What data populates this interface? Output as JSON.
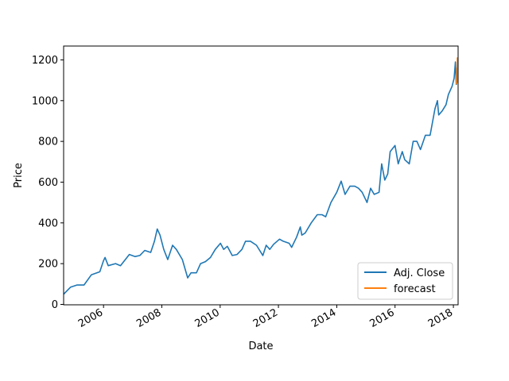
{
  "chart_data": {
    "type": "line",
    "title": "",
    "xlabel": "Date",
    "ylabel": "Price",
    "x_range": [
      "2004-08-19",
      "2018-03-01"
    ],
    "ylim": [
      -2,
      1268
    ],
    "x_ticks": [
      {
        "date": "2006-01-01",
        "label": "2006"
      },
      {
        "date": "2008-01-01",
        "label": "2008"
      },
      {
        "date": "2010-01-01",
        "label": "2010"
      },
      {
        "date": "2012-01-01",
        "label": "2012"
      },
      {
        "date": "2014-01-01",
        "label": "2014"
      },
      {
        "date": "2016-01-01",
        "label": "2016"
      },
      {
        "date": "2018-01-01",
        "label": "2018"
      }
    ],
    "y_ticks": [
      0,
      200,
      400,
      600,
      800,
      1000,
      1200
    ],
    "grid": false,
    "legend": "lower right",
    "series": [
      {
        "name": "Adj. Close",
        "color": "#1f77b4",
        "points": [
          [
            "2004-08-19",
            50
          ],
          [
            "2004-11-15",
            85
          ],
          [
            "2005-02-01",
            95
          ],
          [
            "2005-05-01",
            95
          ],
          [
            "2005-08-01",
            145
          ],
          [
            "2005-11-15",
            160
          ],
          [
            "2006-01-01",
            215
          ],
          [
            "2006-01-20",
            230
          ],
          [
            "2006-03-01",
            190
          ],
          [
            "2006-06-01",
            200
          ],
          [
            "2006-08-01",
            190
          ],
          [
            "2006-11-20",
            245
          ],
          [
            "2007-02-01",
            235
          ],
          [
            "2007-04-01",
            240
          ],
          [
            "2007-06-01",
            265
          ],
          [
            "2007-08-15",
            255
          ],
          [
            "2007-10-01",
            310
          ],
          [
            "2007-11-05",
            370
          ],
          [
            "2007-12-10",
            340
          ],
          [
            "2008-01-25",
            270
          ],
          [
            "2008-03-15",
            220
          ],
          [
            "2008-05-15",
            290
          ],
          [
            "2008-07-01",
            270
          ],
          [
            "2008-09-15",
            220
          ],
          [
            "2008-11-20",
            130
          ],
          [
            "2009-01-01",
            155
          ],
          [
            "2009-03-10",
            155
          ],
          [
            "2009-05-01",
            200
          ],
          [
            "2009-07-01",
            210
          ],
          [
            "2009-09-01",
            230
          ],
          [
            "2009-11-01",
            270
          ],
          [
            "2010-01-05",
            300
          ],
          [
            "2010-02-15",
            270
          ],
          [
            "2010-04-01",
            285
          ],
          [
            "2010-06-01",
            240
          ],
          [
            "2010-08-01",
            245
          ],
          [
            "2010-10-01",
            270
          ],
          [
            "2010-11-15",
            310
          ],
          [
            "2011-01-15",
            310
          ],
          [
            "2011-04-01",
            290
          ],
          [
            "2011-06-20",
            240
          ],
          [
            "2011-08-01",
            290
          ],
          [
            "2011-09-15",
            270
          ],
          [
            "2011-11-01",
            295
          ],
          [
            "2012-01-15",
            320
          ],
          [
            "2012-03-01",
            310
          ],
          [
            "2012-05-15",
            300
          ],
          [
            "2012-06-15",
            280
          ],
          [
            "2012-08-15",
            330
          ],
          [
            "2012-10-01",
            380
          ],
          [
            "2012-10-20",
            340
          ],
          [
            "2012-12-01",
            350
          ],
          [
            "2013-02-15",
            400
          ],
          [
            "2013-05-01",
            440
          ],
          [
            "2013-06-30",
            440
          ],
          [
            "2013-08-15",
            430
          ],
          [
            "2013-10-20",
            500
          ],
          [
            "2014-01-01",
            550
          ],
          [
            "2014-02-25",
            605
          ],
          [
            "2014-04-15",
            540
          ],
          [
            "2014-06-15",
            580
          ],
          [
            "2014-08-15",
            580
          ],
          [
            "2014-10-01",
            570
          ],
          [
            "2014-11-15",
            550
          ],
          [
            "2015-01-15",
            500
          ],
          [
            "2015-03-01",
            570
          ],
          [
            "2015-04-15",
            540
          ],
          [
            "2015-06-15",
            550
          ],
          [
            "2015-07-17",
            690
          ],
          [
            "2015-08-25",
            610
          ],
          [
            "2015-10-01",
            640
          ],
          [
            "2015-11-01",
            750
          ],
          [
            "2016-01-01",
            780
          ],
          [
            "2016-02-10",
            690
          ],
          [
            "2016-04-01",
            750
          ],
          [
            "2016-05-01",
            710
          ],
          [
            "2016-06-27",
            690
          ],
          [
            "2016-08-15",
            800
          ],
          [
            "2016-10-01",
            800
          ],
          [
            "2016-11-15",
            760
          ],
          [
            "2017-01-15",
            830
          ],
          [
            "2017-03-15",
            830
          ],
          [
            "2017-05-15",
            960
          ],
          [
            "2017-06-15",
            1000
          ],
          [
            "2017-07-01",
            930
          ],
          [
            "2017-08-15",
            950
          ],
          [
            "2017-10-01",
            980
          ],
          [
            "2017-10-30",
            1030
          ],
          [
            "2017-12-15",
            1070
          ],
          [
            "2018-01-10",
            1110
          ],
          [
            "2018-01-26",
            1190
          ],
          [
            "2018-02-06",
            1080
          ],
          [
            "2018-02-20",
            1120
          ]
        ]
      },
      {
        "name": "forecast",
        "color": "#ff7f0e",
        "points": [
          [
            "2018-02-10",
            1080
          ],
          [
            "2018-02-14",
            1160
          ],
          [
            "2018-02-17",
            1100
          ],
          [
            "2018-02-20",
            1210
          ],
          [
            "2018-02-23",
            1090
          ],
          [
            "2018-02-26",
            1180
          ]
        ]
      }
    ]
  }
}
